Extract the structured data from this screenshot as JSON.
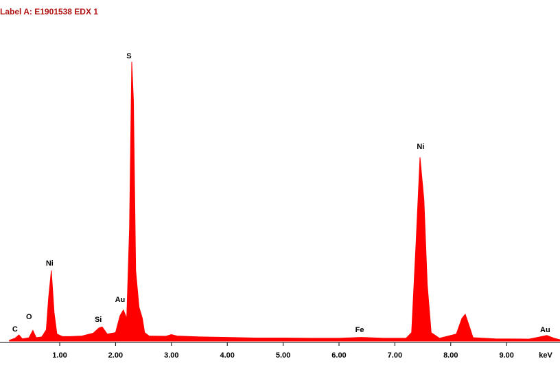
{
  "chart_data": {
    "type": "area",
    "title": "Label A: E1901538 EDX 1",
    "x_label": "keV",
    "x": [
      0.1,
      0.2,
      0.27,
      0.33,
      0.45,
      0.52,
      0.58,
      0.68,
      0.76,
      0.8,
      0.85,
      0.9,
      0.95,
      1.05,
      1.2,
      1.4,
      1.6,
      1.7,
      1.76,
      1.85,
      2.0,
      2.08,
      2.14,
      2.2,
      2.25,
      2.29,
      2.32,
      2.36,
      2.42,
      2.48,
      2.52,
      2.6,
      2.9,
      3.0,
      3.1,
      3.5,
      4.0,
      4.5,
      5.0,
      5.5,
      6.0,
      6.4,
      6.8,
      7.2,
      7.3,
      7.38,
      7.45,
      7.52,
      7.58,
      7.65,
      7.8,
      8.1,
      8.2,
      8.26,
      8.32,
      8.4,
      8.8,
      9.4,
      9.6,
      9.72,
      9.85,
      9.95
    ],
    "values": [
      0.3,
      1.0,
      2.2,
      0.8,
      1.2,
      3.8,
      1.2,
      1.5,
      4,
      15,
      25,
      10,
      2.5,
      1.6,
      1.6,
      1.8,
      2.8,
      4.6,
      5,
      2.5,
      3,
      9,
      11,
      8,
      40,
      98.8,
      85,
      25,
      12,
      8,
      3,
      1.8,
      1.7,
      2.3,
      1.8,
      1.5,
      1.3,
      1.1,
      1.1,
      1.0,
      1.0,
      1.3,
      1.0,
      1.0,
      3,
      35,
      65,
      50,
      20,
      3,
      1.0,
      2.5,
      8,
      9.5,
      6,
      1.2,
      0.8,
      0.7,
      1.5,
      2,
      1,
      0.5
    ],
    "color": "#ff0000",
    "xlim": [
      0,
      9.95
    ],
    "ylim": [
      0,
      102
    ],
    "xticks": [
      {
        "value": 1,
        "label": "1.00"
      },
      {
        "value": 2,
        "label": "2.00"
      },
      {
        "value": 3,
        "label": "3.00"
      },
      {
        "value": 4,
        "label": "4.00"
      },
      {
        "value": 5,
        "label": "5.00"
      },
      {
        "value": 6,
        "label": "6.00"
      },
      {
        "value": 7,
        "label": "7.00"
      },
      {
        "value": 8,
        "label": "8.00"
      },
      {
        "value": 9,
        "label": "9.00"
      }
    ],
    "annotations": [
      {
        "label": "C",
        "x": 0.2,
        "y": 4.1
      },
      {
        "label": "O",
        "x": 0.45,
        "y": 8.5
      },
      {
        "label": "Ni",
        "x": 0.82,
        "y": 27.4
      },
      {
        "label": "Si",
        "x": 1.69,
        "y": 7.5
      },
      {
        "label": "Au",
        "x": 2.08,
        "y": 14.5
      },
      {
        "label": "S",
        "x": 2.24,
        "y": 100.7
      },
      {
        "label": "Fe",
        "x": 6.37,
        "y": 3.9
      },
      {
        "label": "Ni",
        "x": 7.46,
        "y": 68.7
      },
      {
        "label": "Au",
        "x": 9.69,
        "y": 3.9
      }
    ]
  }
}
